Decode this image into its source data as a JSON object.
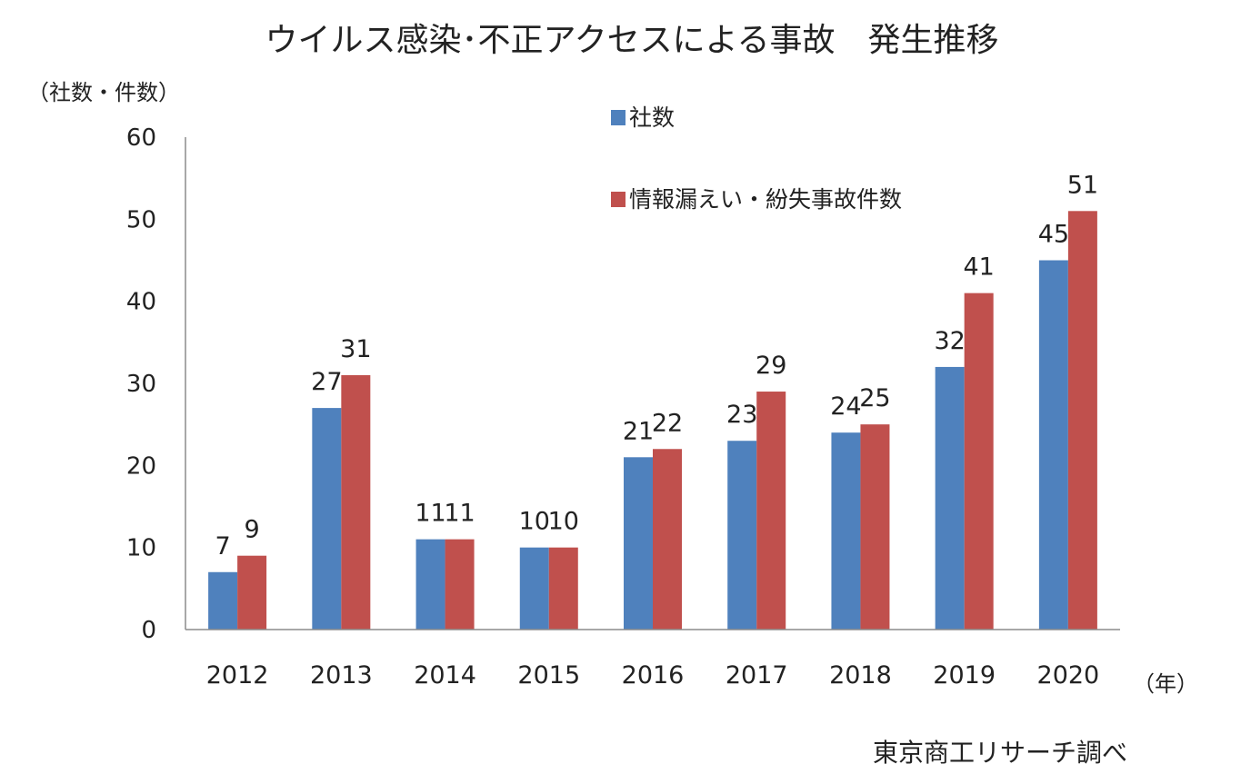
{
  "chart_data": {
    "type": "bar",
    "title": "ウイルス感染･不正アクセスによる事故　発生推移",
    "ylabel": "（社数・件数）",
    "xlabel": "（年）",
    "ylim": [
      0,
      60
    ],
    "yticks": [
      "0",
      "10",
      "20",
      "30",
      "40",
      "50",
      "60"
    ],
    "categories": [
      "2012",
      "2013",
      "2014",
      "2015",
      "2016",
      "2017",
      "2018",
      "2019",
      "2020"
    ],
    "series": [
      {
        "name": "社数",
        "color": "#4f81bd",
        "values": [
          7,
          27,
          11,
          10,
          21,
          23,
          24,
          32,
          45
        ]
      },
      {
        "name": "情報漏えい・紛失事故件数",
        "color": "#c0504d",
        "values": [
          9,
          31,
          11,
          10,
          22,
          29,
          25,
          41,
          51
        ]
      }
    ],
    "legend_position": "top-right",
    "grid": false,
    "source": "東京商工リサーチ調べ"
  }
}
